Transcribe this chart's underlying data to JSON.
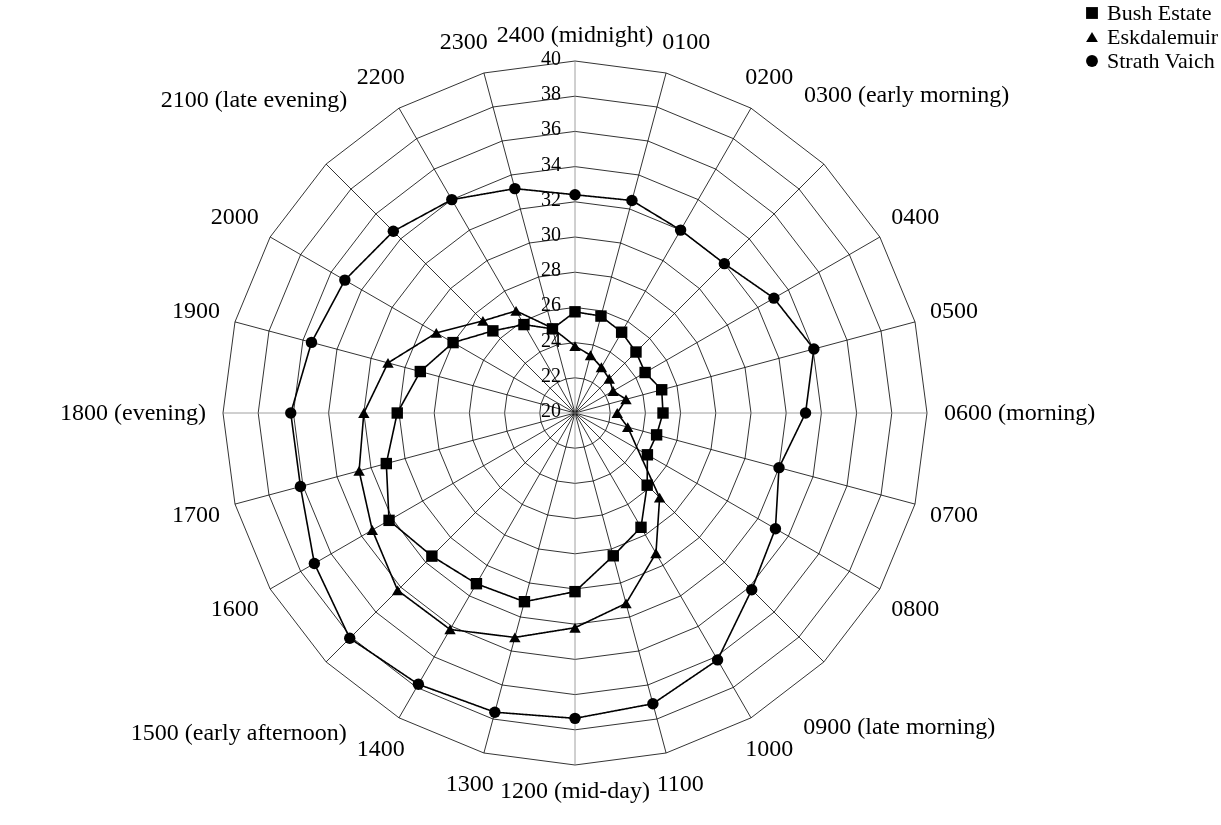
{
  "chart_data": {
    "type": "radar",
    "categories": [
      "2400  (midnight)",
      "0100",
      "0200",
      "0300  (early morning)",
      "0400",
      "0500",
      "0600  (morning)",
      "0700",
      "0800",
      "0900  (late morning)",
      "1000",
      "1100",
      "1200 (mid-day)",
      "1300",
      "1400",
      "1500  (early afternoon)",
      "1600",
      "1700",
      "1800  (evening)",
      "1900",
      "2000",
      "2100  (late evening)",
      "2200",
      "2300"
    ],
    "series": [
      {
        "name": "Bush Estate",
        "color": "#000000",
        "marker": "square",
        "values": [
          25.75,
          25.7,
          25.3,
          24.9,
          24.6,
          25.1,
          25.0,
          24.8,
          24.75,
          25.8,
          27.5,
          28.4,
          30.15,
          31.1,
          31.2,
          31.5,
          32.2,
          31.1,
          30.1,
          29.1,
          28.0,
          26.6,
          25.8,
          24.95
        ]
      },
      {
        "name": "Eskdalemuir",
        "color": "#000000",
        "marker": "triangle",
        "values": [
          23.8,
          23.4,
          23.0,
          22.75,
          22.5,
          23.0,
          22.4,
          23.1,
          null,
          26.8,
          29.2,
          31.2,
          32.2,
          33.2,
          34.2,
          34.25,
          33.3,
          32.7,
          32.0,
          31.0,
          29.1,
          27.4,
          26.7,
          25.0
        ]
      },
      {
        "name": "Strath Vaich",
        "color": "#000000",
        "marker": "circle",
        "values": [
          32.4,
          32.5,
          32.0,
          32.0,
          33.05,
          34.05,
          33.1,
          32.0,
          33.15,
          34.2,
          36.2,
          37.1,
          37.35,
          37.6,
          37.8,
          38.1,
          37.1,
          36.15,
          36.15,
          35.5,
          35.1,
          34.6,
          34.0,
          33.2
        ]
      }
    ],
    "ylim": [
      20,
      40
    ],
    "yticks": [
      20,
      22,
      24,
      26,
      28,
      30,
      32,
      34,
      36,
      38,
      40
    ],
    "grid": true,
    "legend": "top right",
    "line_style": "solid"
  }
}
